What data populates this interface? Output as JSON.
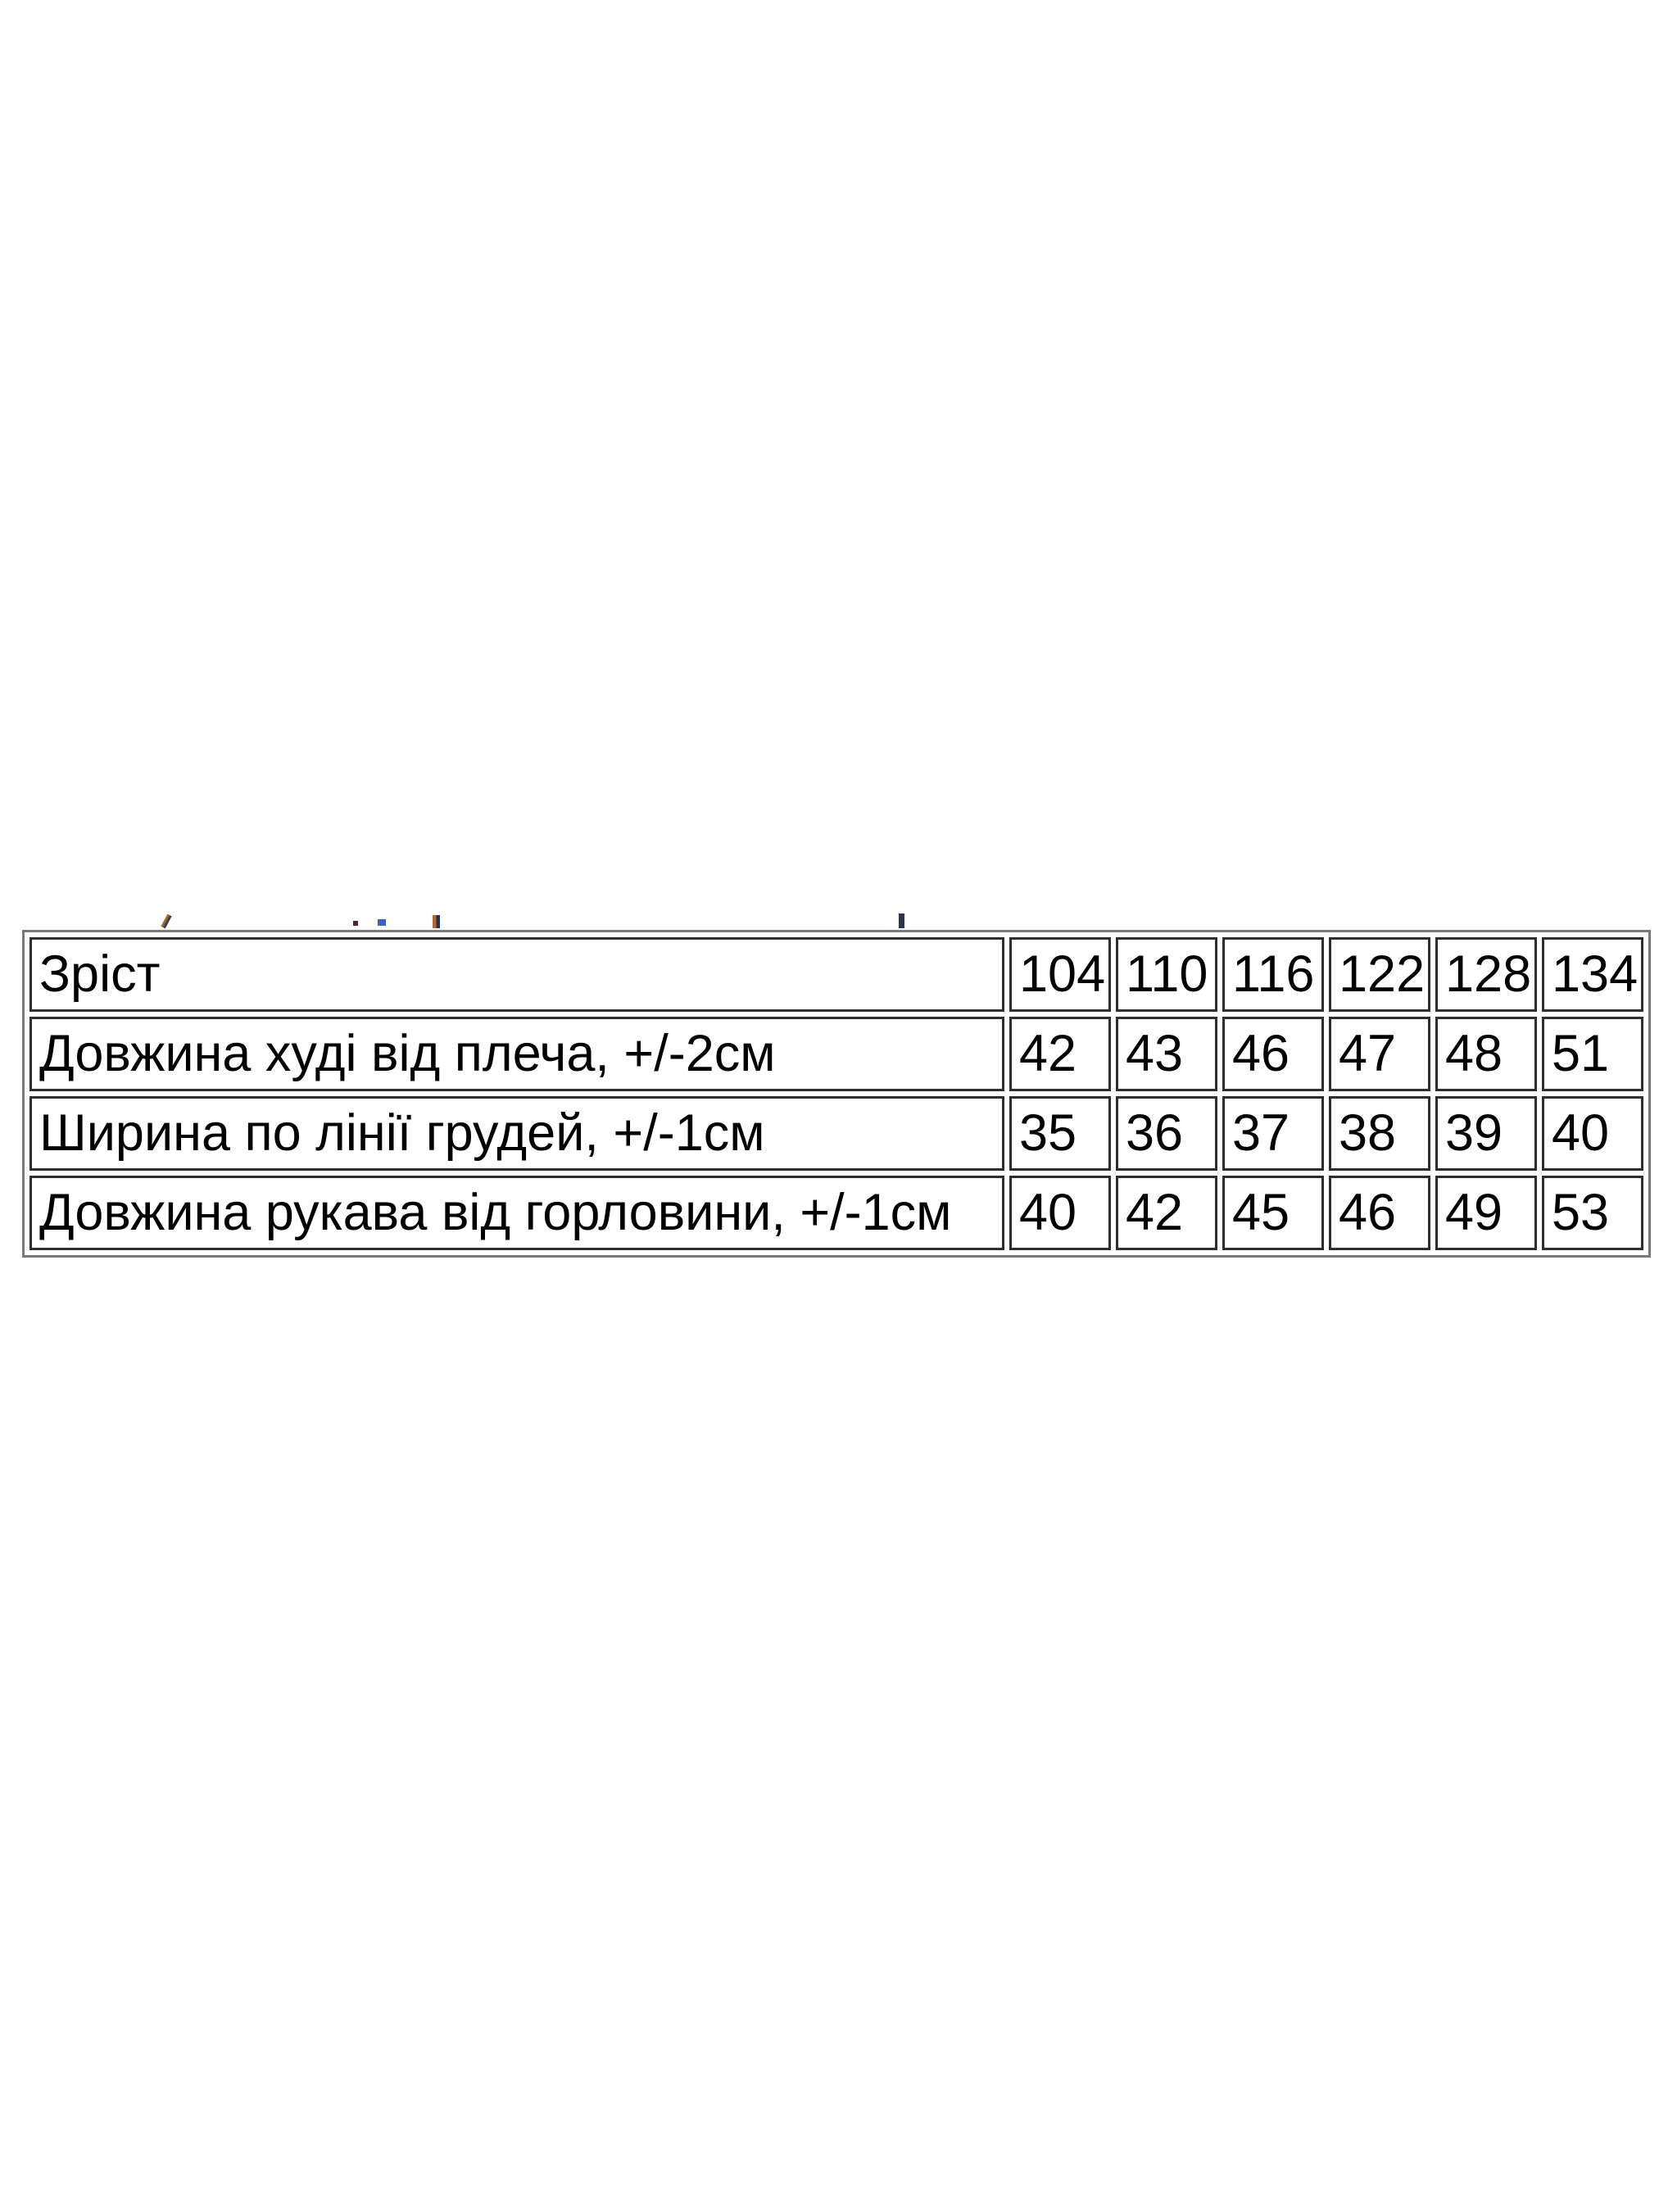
{
  "page": {
    "background_color": "#ffffff",
    "table_border_outer_color": "#7a7a7a",
    "table_border_cell_color": "#2e2e2e",
    "text_color": "#000000"
  },
  "size_table": {
    "header": {
      "label": "Зріст",
      "sizes": [
        "104",
        "110",
        "116",
        "122",
        "128",
        "134"
      ]
    },
    "rows": [
      {
        "label": "Довжина худі від плеча, +/-2см",
        "values": [
          "42",
          "43",
          "46",
          "47",
          "48",
          "51"
        ]
      },
      {
        "label": "Ширина по лінії грудей, +/-1см",
        "values": [
          "35",
          "36",
          "37",
          "38",
          "39",
          "40"
        ]
      },
      {
        "label": "Довжина рукава від горловини, +/-1см",
        "values": [
          "40",
          "42",
          "45",
          "46",
          "49",
          "53"
        ]
      }
    ]
  },
  "chart_data": {
    "type": "table",
    "title": "",
    "columns": [
      "Зріст",
      "104",
      "110",
      "116",
      "122",
      "128",
      "134"
    ],
    "rows": [
      [
        "Довжина худі від плеча, +/-2см",
        42,
        43,
        46,
        47,
        48,
        51
      ],
      [
        "Ширина по лінії грудей, +/-1см",
        35,
        36,
        37,
        38,
        39,
        40
      ],
      [
        "Довжина рукава від горловини, +/-1см",
        40,
        42,
        45,
        46,
        49,
        53
      ]
    ]
  },
  "clipped_fragments": {
    "description": "bottom remnants of a cut-off text line above the table",
    "marks": [
      "slash",
      "dot",
      "dot",
      "bar",
      "bar"
    ]
  }
}
